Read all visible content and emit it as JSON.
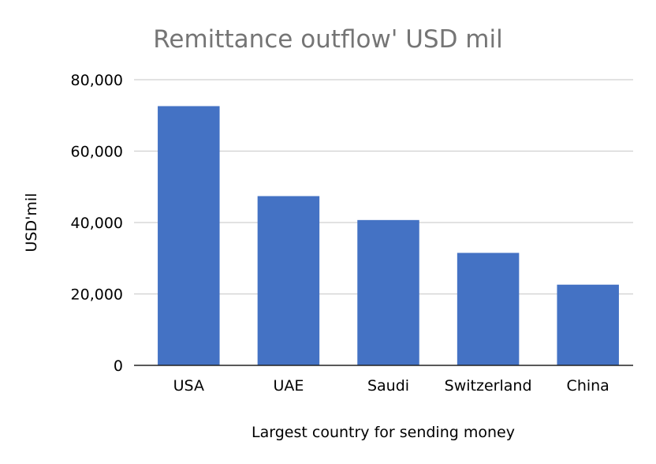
{
  "chart_data": {
    "type": "bar",
    "title": "Remittance outflow' USD mil",
    "xlabel": "Largest country for sending money",
    "ylabel": "USD'mil",
    "categories": [
      "USA",
      "UAE",
      "Saudi",
      "Switzerland",
      "China"
    ],
    "values": [
      72600,
      47400,
      40700,
      31500,
      22600
    ],
    "ylim": [
      0,
      80000
    ],
    "yticks": [
      0,
      20000,
      40000,
      60000,
      80000
    ],
    "ytick_labels": [
      "0",
      "20,000",
      "40,000",
      "60,000",
      "80,000"
    ],
    "grid": true,
    "legend": "none",
    "colors": {
      "bar": "#4472c4",
      "title": "#757575",
      "grid": "#d0d0d0",
      "axis": "#222222"
    }
  }
}
